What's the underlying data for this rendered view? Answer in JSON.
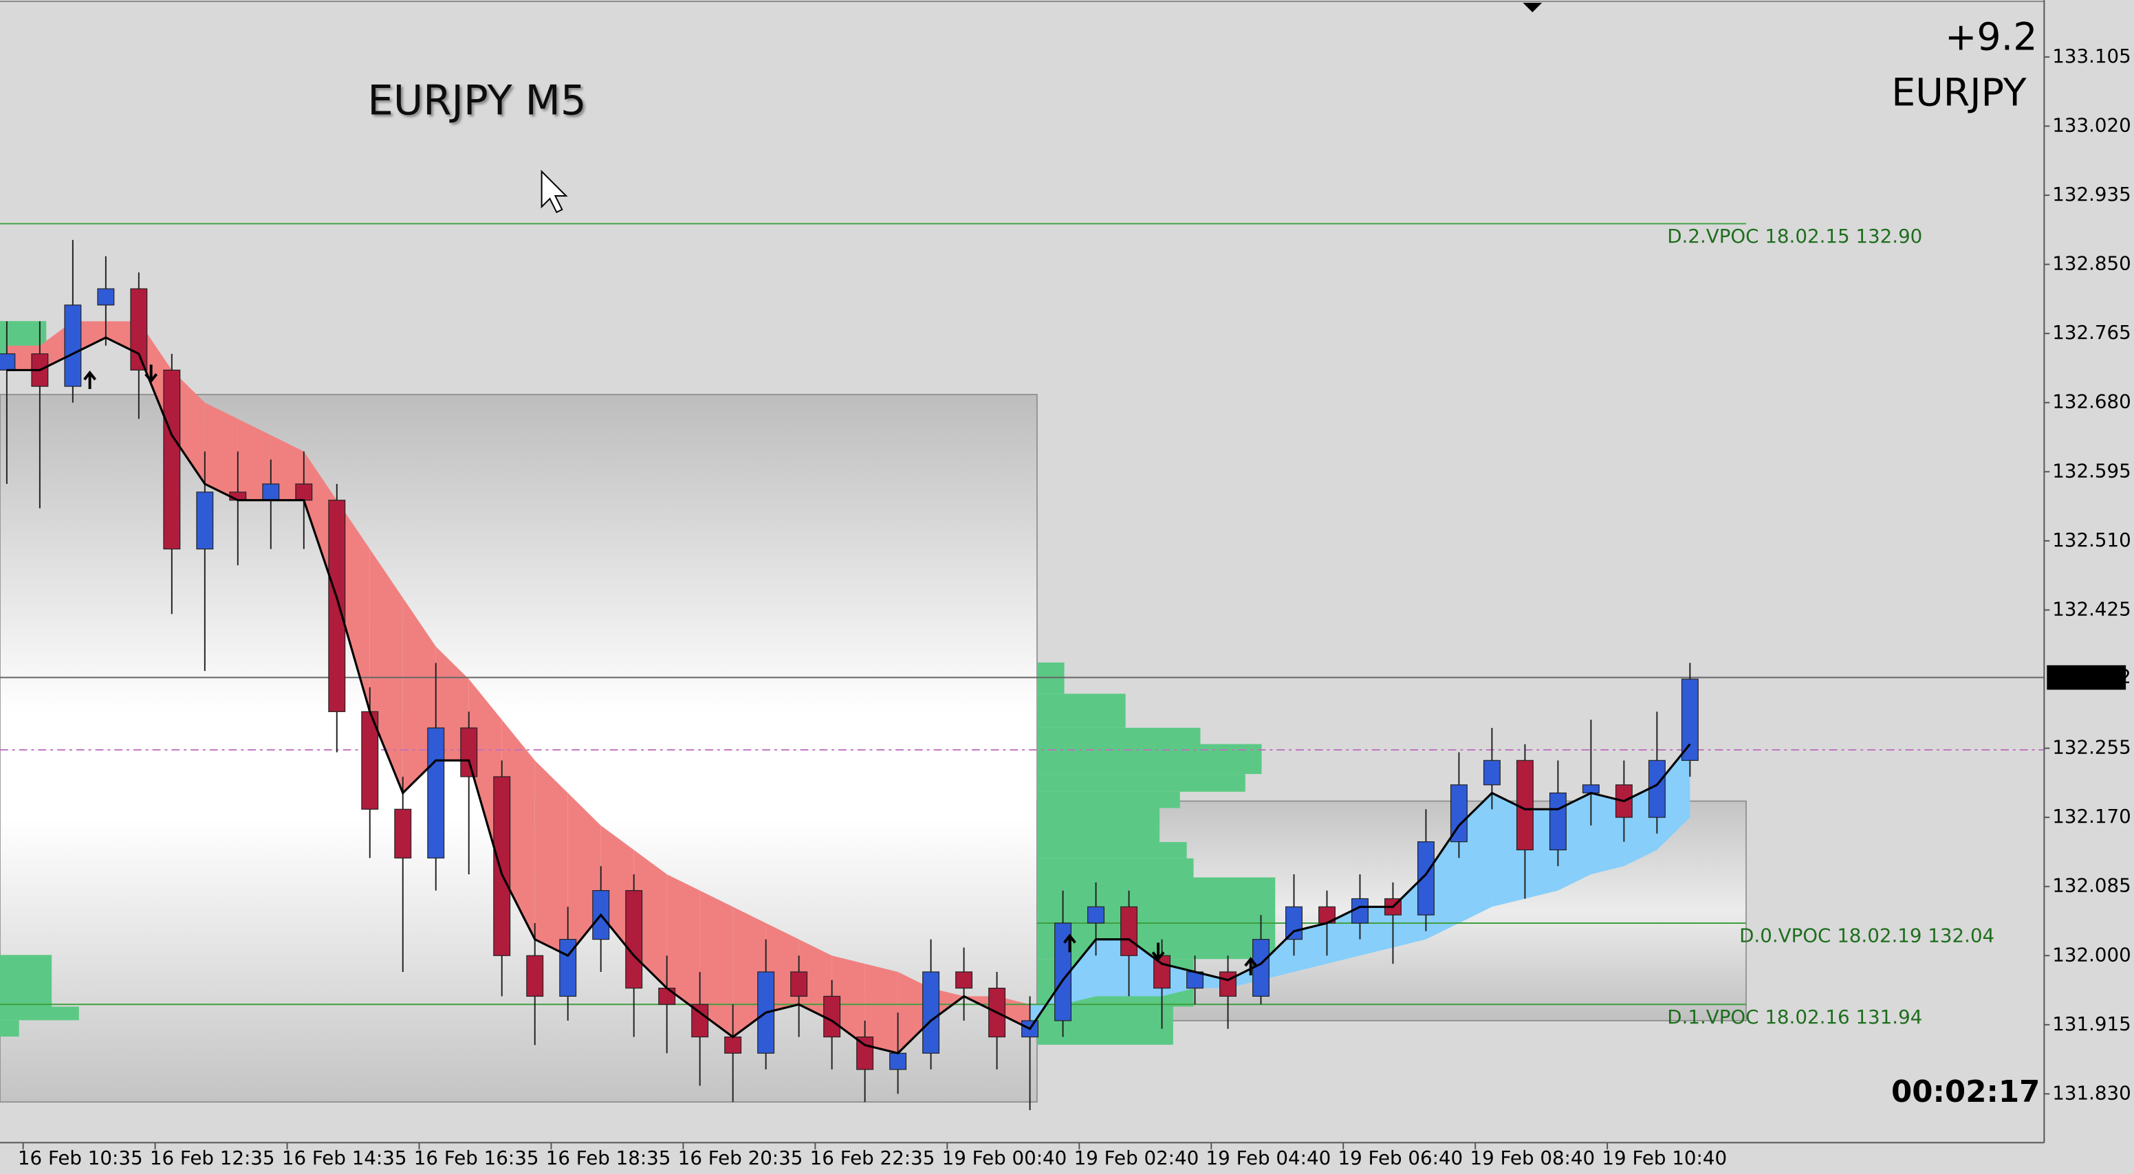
{
  "chart_data": {
    "type": "candlestick",
    "title": "EURJPY M5",
    "symbol": "EURJPY",
    "change": "+9.2",
    "timer": "00:02:17",
    "xticks": [
      "16 Feb 10:35",
      "16 Feb 12:35",
      "16 Feb 14:35",
      "16 Feb 16:35",
      "16 Feb 18:35",
      "16 Feb 20:35",
      "16 Feb 22:35",
      "19 Feb 00:40",
      "19 Feb 02:40",
      "19 Feb 04:40",
      "19 Feb 06:40",
      "19 Feb 08:40",
      "19 Feb 10:40"
    ],
    "ylim": [
      131.77,
      133.175
    ],
    "yticks": [
      133.105,
      {
        "value": 133.02,
        "label": "133.020"
      },
      132.935,
      {
        "value": 132.85,
        "label": "132.850"
      },
      132.765,
      {
        "value": 132.68,
        "label": "132.680"
      },
      132.595,
      {
        "value": 132.51,
        "label": "132.510"
      },
      132.425,
      132.255,
      {
        "value": 132.17,
        "label": "132.170"
      },
      132.085,
      {
        "value": 132.0,
        "label": "132.000"
      },
      131.915,
      {
        "value": 131.83,
        "label": "131.830"
      }
    ],
    "current_price": 132.342,
    "dashed_level": 132.253,
    "up_color": "#2f5bd6",
    "down_color": "#b01c3c",
    "ma_color": "#000000",
    "cloud_colors": [
      "#f08080",
      "#87cefa"
    ],
    "open": [
      132.72,
      132.74,
      132.7,
      132.8,
      132.82,
      132.72,
      132.5,
      132.57,
      132.56,
      132.58,
      132.56,
      132.3,
      132.18,
      132.12,
      132.28,
      132.22,
      132.0,
      131.95,
      132.02,
      132.08,
      131.96,
      131.94,
      131.9,
      131.88,
      131.98,
      131.95,
      131.9,
      131.86,
      131.88,
      131.98,
      131.96,
      131.9,
      131.92,
      132.04,
      132.06,
      132.0,
      131.96,
      131.98,
      131.95,
      132.02,
      132.06,
      132.04,
      132.07,
      132.05,
      132.14,
      132.21,
      132.24,
      132.13,
      132.2,
      132.21,
      132.17,
      132.24
    ],
    "high": [
      132.78,
      132.78,
      132.88,
      132.86,
      132.84,
      132.74,
      132.62,
      132.62,
      132.61,
      132.62,
      132.58,
      132.33,
      132.22,
      132.36,
      132.3,
      132.24,
      132.04,
      132.06,
      132.11,
      132.1,
      132.0,
      131.98,
      131.94,
      132.02,
      132.0,
      131.97,
      131.92,
      131.93,
      132.02,
      132.01,
      131.98,
      131.95,
      132.08,
      132.09,
      132.08,
      132.02,
      132.0,
      132.0,
      132.05,
      132.1,
      132.08,
      132.1,
      132.09,
      132.18,
      132.25,
      132.28,
      132.26,
      132.24,
      132.29,
      132.24,
      132.3,
      132.36
    ],
    "low": [
      132.58,
      132.55,
      132.68,
      132.75,
      132.66,
      132.42,
      132.35,
      132.48,
      132.5,
      132.5,
      132.25,
      132.12,
      131.98,
      132.08,
      132.1,
      131.95,
      131.89,
      131.92,
      131.98,
      131.9,
      131.88,
      131.84,
      131.82,
      131.86,
      131.9,
      131.86,
      131.82,
      131.83,
      131.86,
      131.92,
      131.86,
      131.81,
      131.9,
      132.0,
      131.95,
      131.91,
      131.94,
      131.91,
      131.94,
      132.0,
      132.0,
      132.02,
      131.99,
      132.03,
      132.12,
      132.18,
      132.07,
      132.11,
      132.16,
      132.14,
      132.15,
      132.22
    ],
    "close": [
      132.74,
      132.7,
      132.8,
      132.82,
      132.72,
      132.5,
      132.57,
      132.56,
      132.58,
      132.56,
      132.3,
      132.18,
      132.12,
      132.28,
      132.22,
      132.0,
      131.95,
      132.02,
      132.08,
      131.96,
      131.94,
      131.9,
      131.88,
      131.98,
      131.95,
      131.9,
      131.86,
      131.88,
      131.98,
      131.96,
      131.9,
      131.92,
      132.04,
      132.06,
      132.0,
      131.96,
      131.98,
      131.95,
      132.02,
      132.06,
      132.04,
      132.07,
      132.05,
      132.14,
      132.21,
      132.24,
      132.13,
      132.2,
      132.21,
      132.17,
      132.24,
      132.34
    ],
    "ma": [
      132.72,
      132.72,
      132.74,
      132.76,
      132.74,
      132.64,
      132.58,
      132.56,
      132.56,
      132.56,
      132.44,
      132.3,
      132.2,
      132.24,
      132.24,
      132.1,
      132.02,
      132.0,
      132.05,
      132.0,
      131.96,
      131.93,
      131.9,
      131.93,
      131.94,
      131.92,
      131.89,
      131.88,
      131.92,
      131.95,
      131.93,
      131.91,
      131.97,
      132.02,
      132.02,
      131.99,
      131.98,
      131.97,
      131.99,
      132.03,
      132.04,
      132.06,
      132.06,
      132.1,
      132.16,
      132.2,
      132.18,
      132.18,
      132.2,
      132.19,
      132.21,
      132.26
    ],
    "cloud": [
      132.75,
      132.75,
      132.78,
      132.78,
      132.78,
      132.72,
      132.68,
      132.66,
      132.64,
      132.62,
      132.56,
      132.5,
      132.44,
      132.38,
      132.34,
      132.29,
      132.24,
      132.2,
      132.16,
      132.13,
      132.1,
      132.08,
      132.06,
      132.04,
      132.02,
      132.0,
      131.99,
      131.98,
      131.96,
      131.95,
      131.95,
      131.94,
      131.94,
      131.95,
      131.95,
      131.95,
      131.96,
      131.96,
      131.97,
      131.98,
      131.99,
      132.0,
      132.01,
      132.02,
      132.04,
      132.06,
      132.07,
      132.08,
      132.1,
      132.11,
      132.13,
      132.17
    ],
    "zones": [
      {
        "high": 132.69,
        "low": 131.82
      },
      {
        "high": 132.19,
        "low": 131.92
      }
    ],
    "levels": [
      {
        "label": "D.2.VPOC 18.02.15 132.90",
        "value": 132.9
      },
      {
        "label": "D.0.VPOC 18.02.19 132.04",
        "value": 132.04
      },
      {
        "label": "D.1.VPOC 18.02.16 131.94",
        "value": 131.94
      }
    ]
  }
}
